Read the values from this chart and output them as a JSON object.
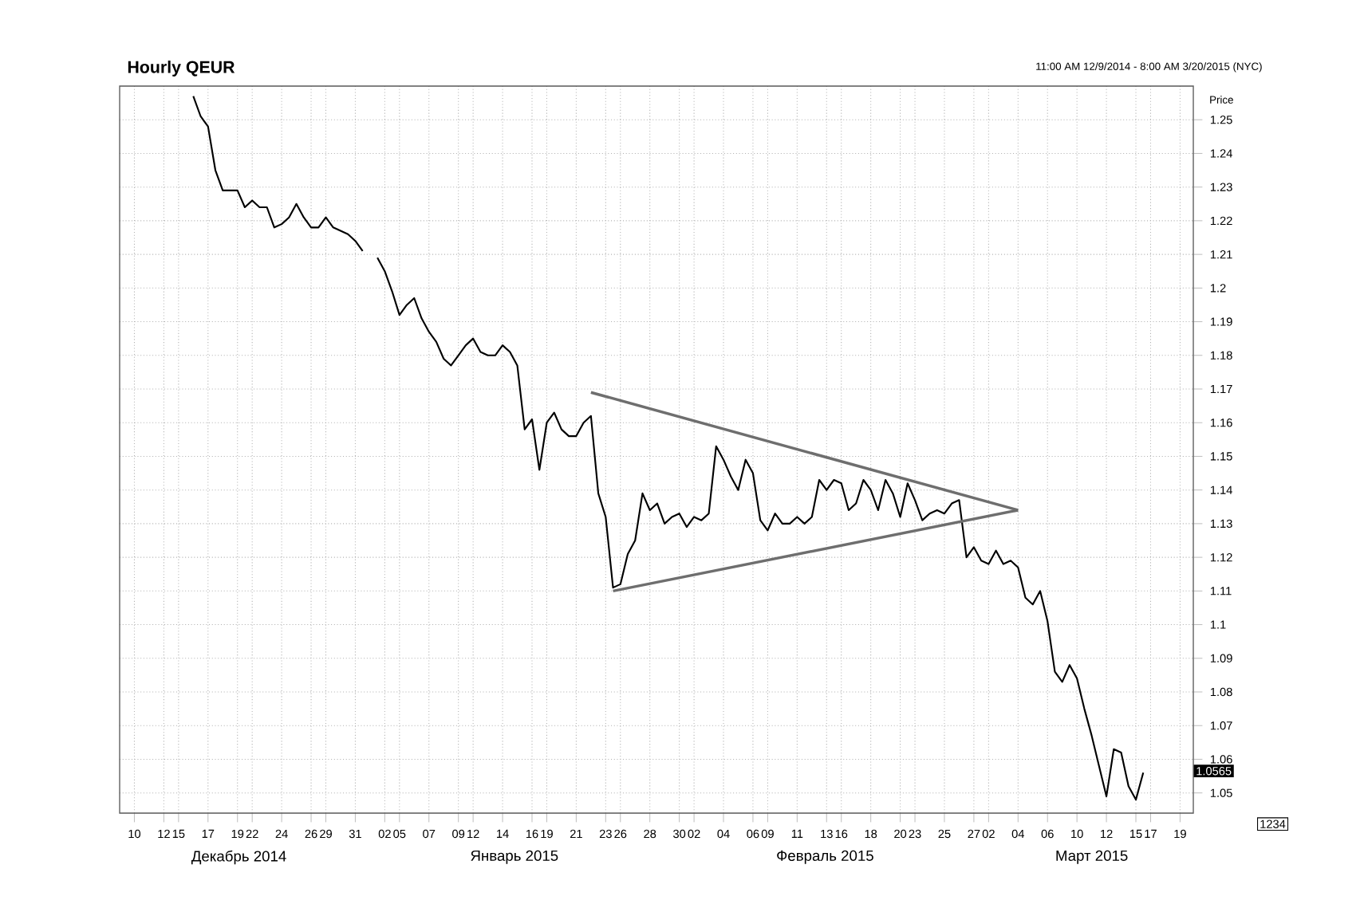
{
  "chart_data": {
    "type": "line",
    "title": "Hourly QEUR",
    "subtitle": "11:00 AM 12/9/2014 - 8:00 AM 3/20/2015 (NYC)",
    "ylabel": "Price",
    "ylim": [
      1.044,
      1.26
    ],
    "yticks": [
      1.05,
      1.06,
      1.07,
      1.08,
      1.09,
      1.1,
      1.11,
      1.12,
      1.13,
      1.14,
      1.15,
      1.16,
      1.17,
      1.18,
      1.19,
      1.2,
      1.21,
      1.22,
      1.23,
      1.24,
      1.25
    ],
    "categories": [
      "10",
      null,
      null,
      null,
      "12",
      null,
      "15",
      null,
      null,
      null,
      "17",
      null,
      null,
      null,
      "19",
      null,
      "22",
      null,
      null,
      null,
      "24",
      null,
      null,
      null,
      "26",
      null,
      "29",
      null,
      null,
      null,
      "31",
      null,
      null,
      null,
      "02",
      null,
      "05",
      null,
      null,
      null,
      "07",
      null,
      null,
      null,
      "09",
      null,
      "12",
      null,
      null,
      null,
      "14",
      null,
      null,
      null,
      "16",
      null,
      "19",
      null,
      null,
      null,
      "21",
      null,
      null,
      null,
      "23",
      null,
      "26",
      null,
      null,
      null,
      "28",
      null,
      null,
      null,
      "30",
      null,
      "02",
      null,
      null,
      null,
      "04",
      null,
      null,
      null,
      "06",
      null,
      "09",
      null,
      null,
      null,
      "11",
      null,
      null,
      null,
      "13",
      null,
      "16",
      null,
      null,
      null,
      "18",
      null,
      null,
      null,
      "20",
      null,
      "23",
      null,
      null,
      null,
      "25",
      null,
      null,
      null,
      "27",
      null,
      "02",
      null,
      null,
      null,
      "04",
      null,
      null,
      null,
      "06",
      null,
      null,
      null,
      "10",
      null,
      null,
      null,
      "12",
      null,
      null,
      null,
      "15",
      null,
      "17",
      null,
      null,
      null,
      "19",
      null
    ],
    "grid": true,
    "series": [
      {
        "color": "#000000",
        "values": [
          null,
          null,
          null,
          null,
          null,
          null,
          null,
          null,
          1.257,
          1.251,
          1.248,
          1.235,
          1.229,
          1.229,
          1.229,
          1.224,
          1.226,
          1.224,
          1.224,
          1.218,
          1.219,
          1.221,
          1.225,
          1.221,
          1.218,
          1.218,
          1.221,
          1.218,
          1.217,
          1.216,
          1.214,
          1.211,
          null,
          1.209,
          1.205,
          1.199,
          1.192,
          1.195,
          1.197,
          1.191,
          1.187,
          1.184,
          1.179,
          1.177,
          1.18,
          1.183,
          1.185,
          1.181,
          1.18,
          1.18,
          1.183,
          1.181,
          1.177,
          1.158,
          1.161,
          1.146,
          1.16,
          1.163,
          1.158,
          1.156,
          1.156,
          1.16,
          1.162,
          1.139,
          1.132,
          1.111,
          1.112,
          1.121,
          1.125,
          1.139,
          1.134,
          1.136,
          1.13,
          1.132,
          1.133,
          1.129,
          1.132,
          1.131,
          1.133,
          1.153,
          1.149,
          1.144,
          1.14,
          1.149,
          1.145,
          1.131,
          1.128,
          1.133,
          1.13,
          1.13,
          1.132,
          1.13,
          1.132,
          1.143,
          1.14,
          1.143,
          1.142,
          1.134,
          1.136,
          1.143,
          1.14,
          1.134,
          1.143,
          1.139,
          1.132,
          1.142,
          1.137,
          1.131,
          1.133,
          1.134,
          1.133,
          1.136,
          1.137,
          1.12,
          1.123,
          1.119,
          1.118,
          1.122,
          1.118,
          1.119,
          1.117,
          1.108,
          1.106,
          1.11,
          1.101,
          1.086,
          1.083,
          1.088,
          1.084,
          1.075,
          1.067,
          1.058,
          1.049,
          1.063,
          1.062,
          1.052,
          1.048,
          1.056,
          null,
          null,
          null,
          null,
          null,
          null
        ]
      },
      {
        "color": "#6e6e6e",
        "values": [
          null,
          null,
          null,
          null,
          null,
          null,
          null,
          null,
          null,
          null,
          null,
          null,
          null,
          null,
          null,
          null,
          null,
          null,
          null,
          null,
          null,
          null,
          null,
          null,
          null,
          null,
          null,
          null,
          null,
          null,
          null,
          null,
          null,
          null,
          null,
          null,
          null,
          null,
          null,
          null,
          null,
          null,
          null,
          null,
          null,
          null,
          null,
          null,
          null,
          null,
          null,
          null,
          null,
          null,
          null,
          null,
          null,
          null,
          null,
          null,
          null,
          null,
          1.169,
          null,
          null,
          null,
          null,
          null,
          null,
          null,
          null,
          null,
          null,
          null,
          null,
          null,
          null,
          null,
          null,
          null,
          null,
          null,
          null,
          null,
          null,
          null,
          null,
          null,
          null,
          null,
          null,
          null,
          null,
          null,
          null,
          null,
          null,
          null,
          null,
          null,
          null,
          null,
          null,
          null,
          null,
          null,
          null,
          null,
          null,
          null,
          null,
          null,
          null,
          null,
          null,
          null,
          null,
          null,
          null,
          null,
          1.134,
          null,
          null,
          null,
          null,
          null,
          null,
          null,
          null,
          null,
          null,
          null,
          null,
          null,
          null,
          null,
          null,
          null,
          null,
          null,
          null,
          null,
          null,
          null
        ]
      },
      {
        "color": "#6e6e6e",
        "values": [
          null,
          null,
          null,
          null,
          null,
          null,
          null,
          null,
          null,
          null,
          null,
          null,
          null,
          null,
          null,
          null,
          null,
          null,
          null,
          null,
          null,
          null,
          null,
          null,
          null,
          null,
          null,
          null,
          null,
          null,
          null,
          null,
          null,
          null,
          null,
          null,
          null,
          null,
          null,
          null,
          null,
          null,
          null,
          null,
          null,
          null,
          null,
          null,
          null,
          null,
          null,
          null,
          null,
          null,
          null,
          null,
          null,
          null,
          null,
          null,
          null,
          null,
          null,
          null,
          null,
          1.11,
          null,
          null,
          null,
          null,
          null,
          null,
          null,
          null,
          null,
          null,
          null,
          null,
          null,
          null,
          null,
          null,
          null,
          null,
          null,
          null,
          null,
          null,
          null,
          null,
          null,
          null,
          null,
          null,
          null,
          null,
          null,
          null,
          null,
          null,
          null,
          null,
          null,
          null,
          null,
          null,
          null,
          null,
          null,
          null,
          null,
          null,
          null,
          null,
          null,
          null,
          null,
          null,
          null,
          null,
          1.134,
          null,
          null,
          null,
          null,
          null,
          null,
          null,
          null,
          null,
          null,
          null,
          null,
          null,
          null,
          null,
          null,
          null,
          null,
          null,
          null,
          null,
          null,
          null
        ]
      }
    ],
    "annotations": [
      "Декабрь 2014",
      "Январь 2015",
      "Февраль 2015",
      "Март 2015",
      {
        "text": "1.0565",
        "y": 1.0565
      },
      "1234"
    ]
  }
}
